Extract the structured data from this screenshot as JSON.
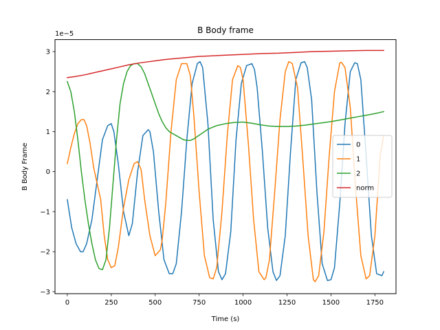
{
  "chart_data": {
    "type": "line",
    "title": "B Body frame",
    "xlabel": "Time (s)",
    "ylabel": "B Body Frame",
    "y_offset_text": "1e−5",
    "y_scale": 1e-05,
    "xlim": [
      -70,
      1870
    ],
    "ylim": [
      -3.05,
      3.3
    ],
    "x_ticks": [
      0,
      250,
      500,
      750,
      1000,
      1250,
      1500,
      1750
    ],
    "x_tick_labels": [
      "0",
      "250",
      "500",
      "750",
      "1000",
      "1250",
      "1500",
      "1750"
    ],
    "y_ticks": [
      -3,
      -2,
      -1,
      0,
      1,
      2,
      3
    ],
    "y_tick_labels": [
      "−3",
      "−2",
      "−1",
      "0",
      "1",
      "2",
      "3"
    ],
    "grid": false,
    "legend_position": "center-right",
    "series": [
      {
        "name": "0",
        "color": "#1f77b4",
        "x": [
          0,
          25,
          50,
          75,
          90,
          110,
          140,
          170,
          200,
          230,
          250,
          265,
          290,
          320,
          350,
          370,
          400,
          430,
          460,
          470,
          490,
          520,
          550,
          580,
          600,
          620,
          650,
          680,
          710,
          740,
          755,
          770,
          800,
          830,
          860,
          880,
          900,
          930,
          960,
          990,
          1020,
          1050,
          1065,
          1080,
          1110,
          1140,
          1170,
          1190,
          1210,
          1240,
          1270,
          1300,
          1330,
          1350,
          1365,
          1390,
          1420,
          1450,
          1480,
          1500,
          1520,
          1550,
          1580,
          1610,
          1635,
          1650,
          1670,
          1700,
          1730,
          1760,
          1790,
          1800
        ],
        "values": [
          -0.7,
          -1.4,
          -1.8,
          -2.0,
          -2.0,
          -1.8,
          -1.2,
          -0.2,
          0.8,
          1.15,
          1.2,
          1.0,
          0.2,
          -1.0,
          -1.6,
          -1.3,
          0.0,
          0.9,
          1.05,
          1.0,
          0.5,
          -1.0,
          -2.2,
          -2.55,
          -2.55,
          -2.3,
          -1.0,
          0.8,
          2.2,
          2.7,
          2.75,
          2.6,
          1.2,
          -1.2,
          -2.5,
          -2.7,
          -2.55,
          -1.5,
          0.8,
          2.2,
          2.65,
          2.7,
          2.55,
          2.1,
          0.5,
          -1.4,
          -2.5,
          -2.72,
          -2.6,
          -1.6,
          0.5,
          2.3,
          2.72,
          2.75,
          2.6,
          1.8,
          -0.5,
          -2.3,
          -2.72,
          -2.7,
          -2.4,
          -0.8,
          1.2,
          2.5,
          2.72,
          2.7,
          2.3,
          0.4,
          -1.6,
          -2.55,
          -2.6,
          -2.5
        ]
      },
      {
        "name": "1",
        "color": "#ff7f0e",
        "x": [
          0,
          20,
          40,
          60,
          80,
          95,
          110,
          130,
          150,
          170,
          190,
          210,
          230,
          250,
          270,
          290,
          320,
          350,
          380,
          400,
          420,
          440,
          470,
          500,
          530,
          540,
          560,
          590,
          620,
          650,
          680,
          700,
          720,
          750,
          780,
          810,
          830,
          850,
          880,
          910,
          940,
          970,
          985,
          1000,
          1030,
          1060,
          1090,
          1120,
          1130,
          1150,
          1180,
          1210,
          1240,
          1260,
          1280,
          1310,
          1340,
          1370,
          1400,
          1410,
          1430,
          1460,
          1490,
          1520,
          1550,
          1560,
          1580,
          1610,
          1640,
          1670,
          1700,
          1720,
          1750,
          1780,
          1800
        ],
        "values": [
          0.2,
          0.6,
          0.95,
          1.2,
          1.3,
          1.3,
          1.15,
          0.7,
          0.1,
          -0.3,
          -0.7,
          -1.6,
          -2.2,
          -2.4,
          -2.35,
          -1.9,
          -0.9,
          -0.2,
          0.2,
          0.25,
          0.05,
          -0.7,
          -1.6,
          -2.1,
          -1.95,
          -1.7,
          -0.8,
          1.0,
          2.3,
          2.7,
          2.7,
          2.4,
          1.4,
          -0.5,
          -2.1,
          -2.65,
          -2.68,
          -2.4,
          -1.0,
          0.9,
          2.3,
          2.65,
          2.6,
          2.3,
          0.7,
          -1.2,
          -2.5,
          -2.7,
          -2.65,
          -2.2,
          -0.5,
          1.3,
          2.5,
          2.75,
          2.7,
          2.1,
          0.3,
          -1.6,
          -2.7,
          -2.75,
          -2.6,
          -1.5,
          0.4,
          2.0,
          2.72,
          2.73,
          2.6,
          1.6,
          -0.4,
          -2.1,
          -2.68,
          -2.6,
          -1.6,
          0.4,
          0.9
        ]
      },
      {
        "name": "2",
        "color": "#2ca02c",
        "x": [
          0,
          20,
          40,
          60,
          80,
          100,
          120,
          140,
          160,
          180,
          200,
          220,
          240,
          260,
          280,
          300,
          320,
          340,
          360,
          380,
          400,
          420,
          440,
          460,
          480,
          500,
          520,
          540,
          560,
          580,
          600,
          620,
          640,
          660,
          680,
          700,
          720,
          740,
          760,
          780,
          800,
          850,
          900,
          950,
          1000,
          1050,
          1100,
          1150,
          1200,
          1250,
          1300,
          1350,
          1400,
          1450,
          1500,
          1550,
          1600,
          1650,
          1700,
          1750,
          1800
        ],
        "values": [
          2.25,
          2.0,
          1.5,
          0.8,
          0.0,
          -0.7,
          -1.3,
          -1.8,
          -2.2,
          -2.42,
          -2.45,
          -2.2,
          -1.4,
          -0.3,
          0.8,
          1.7,
          2.2,
          2.5,
          2.65,
          2.7,
          2.7,
          2.62,
          2.45,
          2.2,
          1.95,
          1.7,
          1.45,
          1.25,
          1.1,
          1.0,
          0.95,
          0.9,
          0.85,
          0.8,
          0.78,
          0.78,
          0.82,
          0.88,
          0.94,
          1.0,
          1.06,
          1.15,
          1.2,
          1.23,
          1.24,
          1.21,
          1.17,
          1.14,
          1.13,
          1.13,
          1.14,
          1.16,
          1.19,
          1.22,
          1.25,
          1.29,
          1.33,
          1.37,
          1.41,
          1.45,
          1.5
        ]
      },
      {
        "name": "norm",
        "color": "#d62728",
        "x": [
          0,
          50,
          100,
          150,
          200,
          250,
          300,
          350,
          400,
          450,
          500,
          550,
          600,
          650,
          700,
          750,
          800,
          900,
          1000,
          1100,
          1200,
          1300,
          1400,
          1500,
          1600,
          1700,
          1800
        ],
        "values": [
          2.35,
          2.38,
          2.42,
          2.47,
          2.52,
          2.57,
          2.62,
          2.67,
          2.71,
          2.74,
          2.77,
          2.8,
          2.82,
          2.84,
          2.86,
          2.88,
          2.89,
          2.91,
          2.93,
          2.95,
          2.96,
          2.98,
          3.0,
          3.01,
          3.02,
          3.03,
          3.03
        ]
      }
    ]
  }
}
